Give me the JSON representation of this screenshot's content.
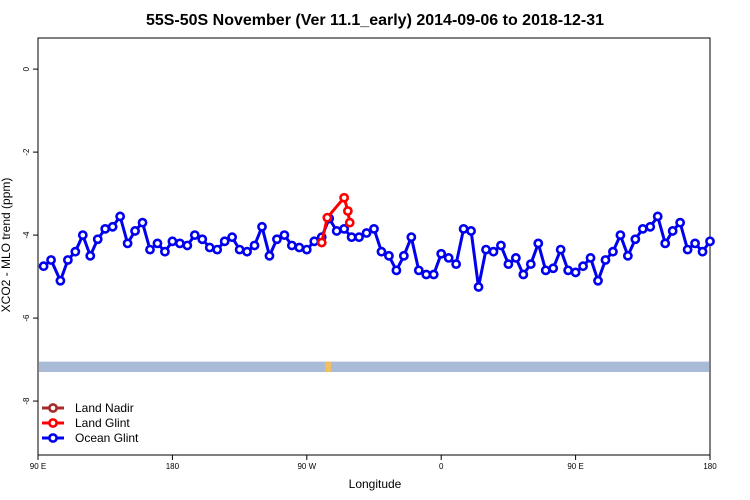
{
  "chart_data": {
    "type": "line",
    "title": "55S-50S November (Ver 11.1_early)   2014-09-06 to 2018-12-31",
    "xlabel": "Longitude",
    "ylabel": "XCO2 - MLO trend (ppm)",
    "xlim": [
      -180,
      180
    ],
    "ylim": [
      -9.3,
      0.75
    ],
    "x_ticks": [
      {
        "value": -180,
        "label": "90 E"
      },
      {
        "value": -108,
        "label": "180"
      },
      {
        "value": -36,
        "label": "90 W"
      },
      {
        "value": 36,
        "label": "0"
      },
      {
        "value": 108,
        "label": "90 E"
      },
      {
        "value": 180,
        "label": "180"
      }
    ],
    "y_ticks": [
      0,
      -2,
      -4,
      -6,
      -8
    ],
    "grid": false,
    "legend_position": "bottom-left",
    "land_band": {
      "y_from": -7.05,
      "y_to": -7.3,
      "color": "#aabbd8",
      "land_segments": [
        {
          "x_from": -26,
          "x_to": -23,
          "color": "#f0c060"
        }
      ]
    },
    "series": [
      {
        "name": "Land Nadir",
        "color": "#a52a2a",
        "x": [],
        "y": []
      },
      {
        "name": "Land Glint",
        "color": "#ff0000",
        "x": [
          -28,
          -25,
          -16,
          -14,
          -13
        ],
        "y": [
          -4.18,
          -3.58,
          -3.1,
          -3.42,
          -3.7
        ]
      },
      {
        "name": "Ocean Glint",
        "color": "#0000ee",
        "x": [
          -177,
          -173,
          -168,
          -164,
          -160,
          -156,
          -152,
          -148,
          -144,
          -140,
          -136,
          -132,
          -128,
          -124,
          -120,
          -116,
          -112,
          -108,
          -104,
          -100,
          -96,
          -92,
          -88,
          -84,
          -80,
          -76,
          -72,
          -68,
          -64,
          -60,
          -56,
          -52,
          -48,
          -44,
          -40,
          -36,
          -32,
          -28,
          -24,
          -20,
          -16,
          -12,
          -8,
          -4,
          0,
          4,
          8,
          12,
          16,
          20,
          24,
          28,
          32,
          36,
          40,
          44,
          48,
          52,
          56,
          60,
          64,
          68,
          72,
          76,
          80,
          84,
          88,
          92,
          96,
          100,
          104,
          108,
          112,
          116,
          120,
          124,
          128,
          132,
          136,
          140,
          144,
          148,
          152,
          156,
          160,
          164,
          168,
          172,
          176,
          180
        ],
        "y": [
          -4.75,
          -4.6,
          -5.1,
          -4.6,
          -4.4,
          -4.0,
          -4.5,
          -4.1,
          -3.85,
          -3.8,
          -3.55,
          -4.2,
          -3.9,
          -3.7,
          -4.35,
          -4.2,
          -4.4,
          -4.15,
          -4.2,
          -4.25,
          -4.0,
          -4.1,
          -4.3,
          -4.35,
          -4.15,
          -4.05,
          -4.35,
          -4.4,
          -4.25,
          -3.8,
          -4.5,
          -4.1,
          -4.0,
          -4.25,
          -4.3,
          -4.35,
          -4.15,
          -4.05,
          -3.6,
          -3.9,
          -3.85,
          -4.05,
          -4.05,
          -3.95,
          -3.85,
          -4.4,
          -4.5,
          -4.85,
          -4.5,
          -4.05,
          -4.85,
          -4.95,
          -4.95,
          -4.45,
          -4.55,
          -4.7,
          -3.85,
          -3.9,
          -5.25,
          -4.35,
          -4.4,
          -4.25,
          -4.7,
          -4.55,
          -4.95,
          -4.7,
          -4.2,
          -4.85,
          -4.8,
          -4.35,
          -4.85,
          -4.9,
          -4.75,
          -4.55,
          -5.1,
          -4.6,
          -4.4,
          -4.0,
          -4.5,
          -4.1,
          -3.85,
          -3.8,
          -3.55,
          -4.2,
          -3.9,
          -3.7,
          -4.35,
          -4.2,
          -4.4,
          -4.15
        ]
      }
    ]
  }
}
